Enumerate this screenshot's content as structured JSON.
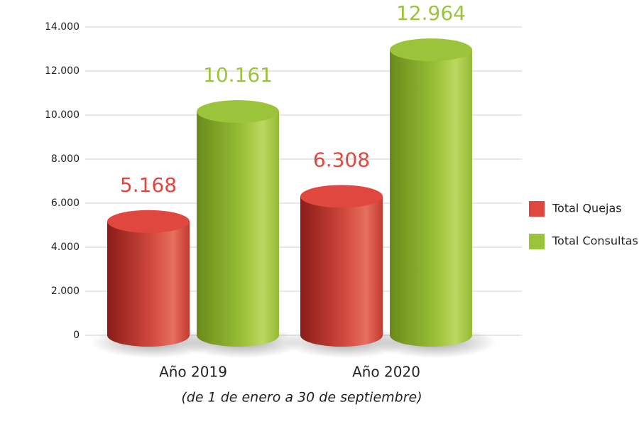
{
  "chart_data": {
    "type": "bar",
    "categories": [
      "Año 2019",
      "Año 2020"
    ],
    "subtitle": "(de 1 de enero a 30 de septiembre)",
    "series": [
      {
        "name": "Total Quejas",
        "color": "#e0473e",
        "values": [
          5168,
          6308
        ],
        "value_labels": [
          "5.168",
          "6.308"
        ]
      },
      {
        "name": "Total Consultas",
        "color": "#9cc43a",
        "values": [
          10161,
          12964
        ],
        "value_labels": [
          "10.161",
          "12.964"
        ]
      }
    ],
    "ylim": [
      0,
      14000
    ],
    "yticks": [
      0,
      {
        "value": 2000,
        "label": "2.000"
      },
      {
        "value": 4000,
        "label": "4.000"
      },
      {
        "value": 6000,
        "label": "6.000"
      },
      {
        "value": 8000,
        "label": "8.000"
      },
      {
        "value": 10000,
        "label": "10.000"
      },
      {
        "value": 12000,
        "label": "12.000"
      },
      {
        "value": 14000,
        "label": "14.000"
      }
    ],
    "grid": true,
    "legend": "right"
  }
}
